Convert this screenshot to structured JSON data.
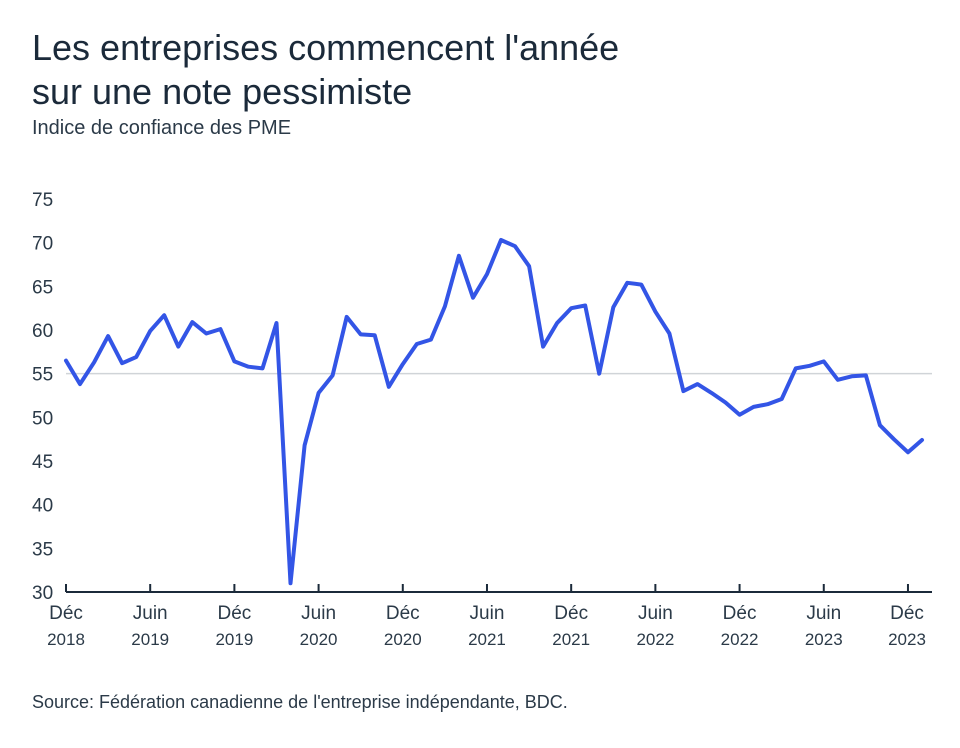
{
  "title_line1": "Les entreprises commencent l'année",
  "title_line2": "sur une note pessimiste",
  "subtitle": "Indice de confiance des PME",
  "source": "Source: Fédération canadienne de l'entreprise indépendante, BDC.",
  "colors": {
    "line": "#3355e6",
    "reference": "#d0d4d8",
    "axis": "#1b2a3a"
  },
  "chart_data": {
    "type": "line",
    "title": "Les entreprises commencent l'année sur une note pessimiste",
    "ylabel": "Indice de confiance des PME",
    "ylim": [
      30,
      75
    ],
    "yticks": [
      30,
      35,
      40,
      45,
      50,
      55,
      60,
      65,
      70,
      75
    ],
    "reference_line": 55,
    "grid": false,
    "x_ticks": [
      {
        "month": "Déc",
        "year": "2018",
        "index": 0
      },
      {
        "month": "Juin",
        "year": "2019",
        "index": 6
      },
      {
        "month": "Déc",
        "year": "2019",
        "index": 12
      },
      {
        "month": "Juin",
        "year": "2020",
        "index": 18
      },
      {
        "month": "Déc",
        "year": "2020",
        "index": 24
      },
      {
        "month": "Juin",
        "year": "2021",
        "index": 30
      },
      {
        "month": "Déc",
        "year": "2021",
        "index": 36
      },
      {
        "month": "Juin",
        "year": "2022",
        "index": 42
      },
      {
        "month": "Déc",
        "year": "2022",
        "index": 48
      },
      {
        "month": "Juin",
        "year": "2023",
        "index": 54
      },
      {
        "month": "Déc",
        "year": "2023",
        "index": 60
      }
    ],
    "series": [
      {
        "values": [
          56.5,
          53.8,
          56.3,
          59.3,
          56.2,
          56.9,
          59.9,
          61.7,
          58.1,
          60.9,
          59.6,
          60.1,
          56.4,
          55.8,
          55.6,
          60.8,
          31.0,
          46.8,
          52.8,
          54.8,
          61.5,
          59.5,
          59.4,
          53.5,
          56.1,
          58.4,
          58.9,
          62.7,
          68.5,
          63.7,
          66.4,
          70.3,
          69.6,
          67.3,
          58.1,
          60.8,
          62.5,
          62.8,
          55.0,
          62.6,
          65.4,
          65.2,
          62.1,
          59.6,
          53.0,
          53.8,
          52.8,
          51.7,
          50.3,
          51.2,
          51.5,
          52.1,
          55.6,
          55.9,
          56.4,
          54.3,
          54.7,
          54.8,
          49.1,
          47.5,
          46.0,
          47.4
        ]
      }
    ]
  }
}
